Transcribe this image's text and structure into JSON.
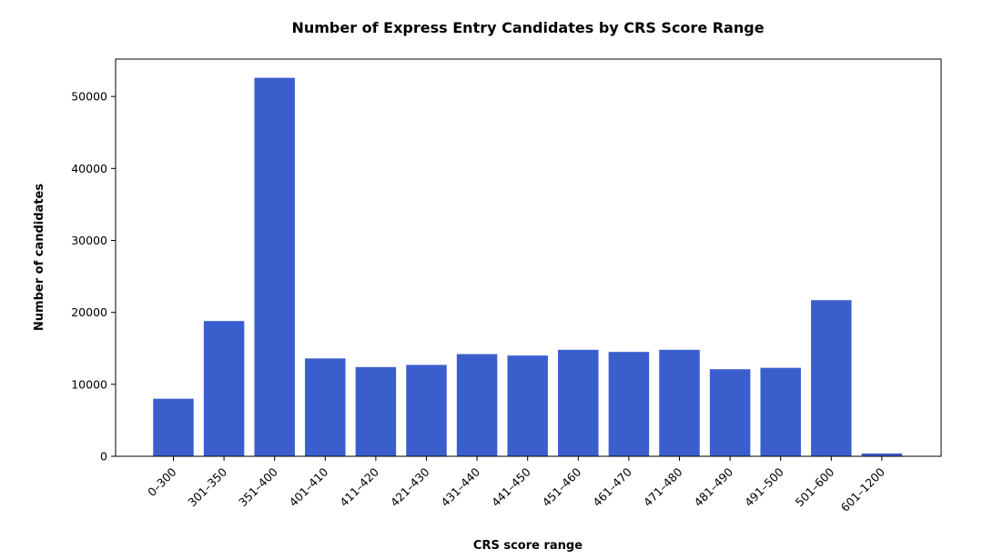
{
  "chart_data": {
    "type": "bar",
    "title": "Number of Express Entry Candidates by CRS Score Range",
    "xlabel": "CRS score range",
    "ylabel": "Number of candidates",
    "categories": [
      "0–300",
      "301–350",
      "351–400",
      "401–410",
      "411–420",
      "421–430",
      "431–440",
      "441–450",
      "451–460",
      "461–470",
      "471–480",
      "481–490",
      "491–500",
      "501–600",
      "601–1200"
    ],
    "values": [
      8000,
      18800,
      52600,
      13600,
      12400,
      12700,
      14200,
      14000,
      14800,
      14500,
      14800,
      12100,
      12300,
      21700,
      400
    ],
    "yticks": [
      0,
      10000,
      20000,
      30000,
      40000,
      50000
    ],
    "ylim": [
      0,
      55200
    ],
    "grid": false,
    "bar_color": "#3a5fcd"
  }
}
